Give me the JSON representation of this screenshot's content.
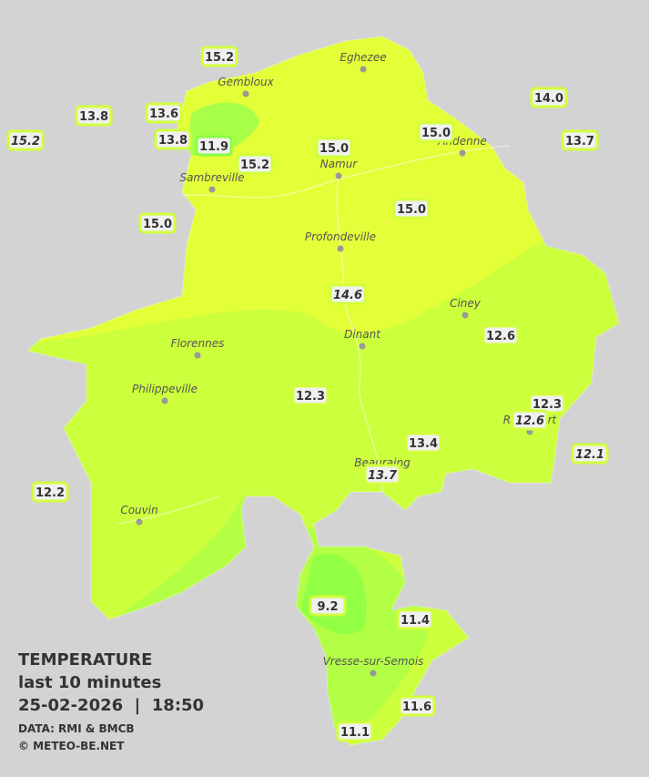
{
  "legend": {
    "title": "TEMPERATURE",
    "period": "last 10 minutes",
    "datetime": "25-02-2026  |  18:50",
    "source": "DATA: RMI & BMCB",
    "copyright": "© METEO-BE.NET"
  },
  "towns": [
    "Eghezee",
    "Gembloux",
    "Andenne",
    "Namur",
    "Sambreville",
    "Profondeville",
    "Ciney",
    "Dinant",
    "Florennes",
    "Philippeville",
    "Rochefort",
    "Beauraing",
    "Couvin",
    "Vresse-sur-Semois"
  ],
  "readings": [
    {
      "value": "15.2"
    },
    {
      "value": "13.8"
    },
    {
      "value": "13.6"
    },
    {
      "value": "15.2",
      "italic": true
    },
    {
      "value": "13.8"
    },
    {
      "value": "11.9"
    },
    {
      "value": "15.2"
    },
    {
      "value": "15.0"
    },
    {
      "value": "15.0"
    },
    {
      "value": "14.0"
    },
    {
      "value": "13.7"
    },
    {
      "value": "15.0"
    },
    {
      "value": "15.0"
    },
    {
      "value": "14.6",
      "italic": true
    },
    {
      "value": "12.6"
    },
    {
      "value": "12.3"
    },
    {
      "value": "12.3"
    },
    {
      "value": "12.6",
      "italic": true
    },
    {
      "value": "12.1",
      "italic": true
    },
    {
      "value": "13.4"
    },
    {
      "value": "13.7",
      "italic": true
    },
    {
      "value": "12.2"
    },
    {
      "value": "9.2"
    },
    {
      "value": "11.4"
    },
    {
      "value": "11.6"
    },
    {
      "value": "11.1"
    }
  ]
}
